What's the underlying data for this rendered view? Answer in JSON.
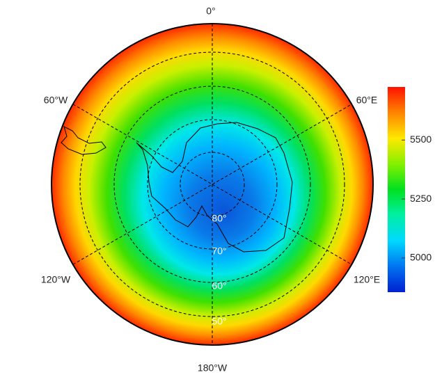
{
  "map": {
    "longitude_labels": [
      "0°",
      "60°E",
      "120°E",
      "180°W",
      "120°W",
      "60°W"
    ],
    "latitude_labels": [
      "80°",
      "70°",
      "60°",
      "50°"
    ],
    "colorbar": {
      "lim": [
        4855,
        5725
      ],
      "ticks": [
        5000,
        5250,
        5500
      ]
    }
  }
}
